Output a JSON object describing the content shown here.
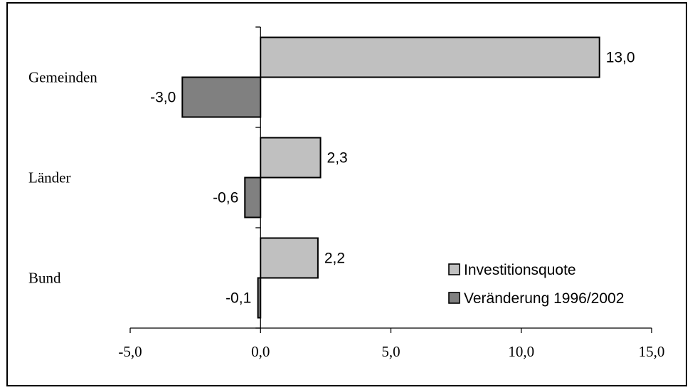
{
  "chart_data": {
    "type": "bar",
    "orientation": "horizontal",
    "categories": [
      "Bund",
      "Länder",
      "Gemeinden"
    ],
    "series": [
      {
        "name": "Investitionsquote",
        "values": [
          2.2,
          2.3,
          13.0
        ],
        "labels": [
          "2,2",
          "2,3",
          "13,0"
        ],
        "color": "#c0c0c0"
      },
      {
        "name": "Veränderung 1996/2002",
        "values": [
          -0.1,
          -0.6,
          -3.0
        ],
        "labels": [
          "-0,1",
          "-0,6",
          "-3,0"
        ],
        "color": "#808080"
      }
    ],
    "xlim": [
      -5,
      15
    ],
    "xticks": [
      -5,
      0,
      5,
      10,
      15
    ],
    "xtick_labels": [
      "-5,0",
      "0,0",
      "5,0",
      "10,0",
      "15,0"
    ],
    "grid": false,
    "legend_position": "bottom-right"
  }
}
